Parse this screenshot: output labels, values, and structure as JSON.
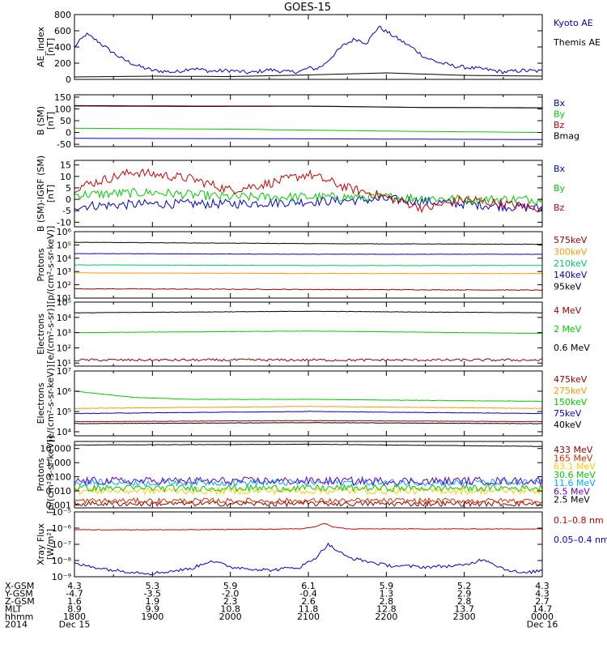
{
  "title": "GOES-15",
  "chart_data": [
    {
      "type": "line",
      "ylabel": [
        "AE_index",
        "[nT]"
      ],
      "scale": "linear",
      "ylim": [
        0,
        800
      ],
      "ticks": [
        0,
        200,
        400,
        600,
        800
      ],
      "tick_labels": [
        "0",
        "200",
        "400",
        "600",
        "800"
      ],
      "series": [
        {
          "name": "Kyoto AE",
          "color": "#0000cc",
          "noise": 0.03,
          "x": [
            0,
            0.3,
            0.6,
            0.9,
            1.2,
            1.6,
            2.0,
            2.6,
            3.0,
            3.5,
            4.0,
            4.5,
            5.0,
            5.5,
            5.8,
            6.0,
            6.2,
            6.4,
            6.6,
            6.9,
            7.2,
            7.5,
            7.8,
            8.1,
            8.4,
            8.7,
            9.0,
            9.4,
            9.8,
            10.2,
            10.6,
            11.0,
            11.5,
            12.0
          ],
          "y": [
            400,
            560,
            470,
            360,
            260,
            170,
            110,
            90,
            140,
            100,
            110,
            80,
            120,
            90,
            100,
            140,
            130,
            180,
            280,
            420,
            500,
            450,
            650,
            560,
            470,
            380,
            270,
            200,
            160,
            140,
            120,
            90,
            110,
            100
          ]
        },
        {
          "name": "Themis AE",
          "color": "#000000",
          "noise": 0.0,
          "x": [
            0,
            2,
            4,
            6,
            8,
            10,
            12
          ],
          "y": [
            30,
            40,
            35,
            55,
            80,
            50,
            40
          ]
        }
      ],
      "legend_ticks": [
        "Kyoto AE",
        "Themis AE"
      ]
    },
    {
      "type": "line",
      "ylabel": [
        "B (SM)",
        "[nT]"
      ],
      "scale": "linear",
      "ylim": [
        -60,
        160
      ],
      "ticks": [
        -50,
        0,
        50,
        100,
        150
      ],
      "tick_labels": [
        "-50",
        "0",
        "50",
        "100",
        "150"
      ],
      "series": [
        {
          "name": "Bx",
          "color": "#0000cc",
          "noise": 0.0,
          "x": [
            0,
            4,
            8,
            12
          ],
          "y": [
            -25,
            -26,
            -28,
            -30
          ]
        },
        {
          "name": "By",
          "color": "#00cc00",
          "noise": 0.0,
          "x": [
            0,
            4,
            8,
            12
          ],
          "y": [
            18,
            14,
            6,
            0
          ]
        },
        {
          "name": "Bz",
          "color": "#cc0000",
          "noise": 0.0,
          "x": [
            0,
            3,
            6,
            9,
            12
          ],
          "y": [
            112,
            110,
            111,
            106,
            104
          ]
        },
        {
          "name": "Bmag",
          "color": "#000000",
          "noise": 0.0,
          "x": [
            0,
            3,
            6,
            9,
            12
          ],
          "y": [
            114,
            112,
            112,
            106,
            105
          ]
        }
      ]
    },
    {
      "type": "line",
      "ylabel": [
        "B (SM)-IGRF (SM)",
        "[nT]"
      ],
      "scale": "linear",
      "ylim": [
        -12,
        17
      ],
      "ticks": [
        -10,
        -5,
        0,
        5,
        10,
        15
      ],
      "tick_labels": [
        "-10",
        "-5",
        "0",
        "5",
        "10",
        "15"
      ],
      "series": [
        {
          "name": "Bx",
          "color": "#0000cc",
          "noise": 0.07,
          "x": [
            0,
            2,
            4,
            6,
            8,
            10,
            12
          ],
          "y": [
            -3,
            -2,
            -2,
            -1,
            0,
            -2,
            -4
          ]
        },
        {
          "name": "By",
          "color": "#00cc00",
          "noise": 0.07,
          "x": [
            0,
            2,
            4,
            6,
            8,
            10,
            12
          ],
          "y": [
            2,
            3,
            1,
            1,
            1,
            0,
            0
          ]
        },
        {
          "name": "Bz",
          "color": "#cc0000",
          "noise": 0.07,
          "x": [
            0,
            1.5,
            3,
            4,
            5,
            6,
            7,
            8,
            9,
            10,
            11,
            12
          ],
          "y": [
            5,
            12,
            9,
            4,
            7,
            11,
            5,
            1,
            -4,
            0,
            -2,
            -4
          ]
        }
      ]
    },
    {
      "type": "line",
      "ylabel": [
        "Protons",
        "[p/(cm²-s-sr-keV)]"
      ],
      "scale": "log",
      "ylim": [
        1,
        6
      ],
      "ticks": [
        1,
        2,
        3,
        4,
        5,
        6
      ],
      "tick_labels": [
        "10¹",
        "10²",
        "10³",
        "10⁴",
        "10⁵",
        "10⁶"
      ],
      "series": [
        {
          "name": "575keV",
          "color": "#990000",
          "noise": 0.01,
          "x": [
            0,
            6,
            12
          ],
          "y": [
            1.7,
            1.65,
            1.6
          ]
        },
        {
          "name": "300keV",
          "color": "#ff9900",
          "noise": 0.005,
          "x": [
            0,
            6,
            12
          ],
          "y": [
            2.9,
            2.85,
            2.85
          ]
        },
        {
          "name": "210keV",
          "color": "#00cc66",
          "noise": 0.005,
          "x": [
            0,
            6,
            12
          ],
          "y": [
            3.5,
            3.45,
            3.45
          ]
        },
        {
          "name": "140keV",
          "color": "#0000cc",
          "noise": 0.005,
          "x": [
            0,
            6,
            12
          ],
          "y": [
            4.35,
            4.3,
            4.3
          ]
        },
        {
          "name": "95keV",
          "color": "#000000",
          "noise": 0.005,
          "x": [
            0,
            6,
            12
          ],
          "y": [
            5.2,
            5.1,
            5.05
          ]
        }
      ]
    },
    {
      "type": "line",
      "ylabel": [
        "Electrons",
        "[e/(cm²-s-sr)]"
      ],
      "scale": "log",
      "ylim": [
        0.8,
        5
      ],
      "ticks": [
        1,
        2,
        3,
        4,
        5
      ],
      "tick_labels": [
        "10¹",
        "10²",
        "10³",
        "10⁴",
        "10⁵"
      ],
      "series": [
        {
          "name": "4 MeV",
          "color": "#990000",
          "noise": 0.04,
          "x": [
            0,
            6,
            12
          ],
          "y": [
            1.2,
            1.2,
            1.2
          ]
        },
        {
          "name": "2 MeV",
          "color": "#00cc00",
          "noise": 0.005,
          "x": [
            0,
            6,
            12
          ],
          "y": [
            3.0,
            3.1,
            2.95
          ]
        },
        {
          "name": "0.6 MeV",
          "color": "#000000",
          "noise": 0.005,
          "x": [
            0,
            6,
            12
          ],
          "y": [
            4.3,
            4.4,
            4.3
          ]
        }
      ]
    },
    {
      "type": "line",
      "ylabel": [
        "Electrons",
        "[e/(cm²-s-sr-keV)]"
      ],
      "scale": "log",
      "ylim": [
        3.8,
        7
      ],
      "ticks": [
        4,
        5,
        6,
        7
      ],
      "tick_labels": [
        "10⁴",
        "10⁵",
        "10⁶",
        "10⁷"
      ],
      "series": [
        {
          "name": "475keV",
          "color": "#990000",
          "noise": 0.006,
          "x": [
            0,
            6,
            12
          ],
          "y": [
            4.5,
            4.55,
            4.5
          ]
        },
        {
          "name": "275keV",
          "color": "#ff9900",
          "noise": 0.006,
          "x": [
            0,
            6,
            12
          ],
          "y": [
            5.15,
            5.25,
            5.15
          ]
        },
        {
          "name": "150keV",
          "color": "#00cc00",
          "noise": 0.006,
          "x": [
            0,
            1.5,
            3,
            6,
            12
          ],
          "y": [
            6.0,
            5.7,
            5.6,
            5.6,
            5.5
          ]
        },
        {
          "name": "75keV",
          "color": "#0000cc",
          "noise": 0.006,
          "x": [
            0,
            6,
            12
          ],
          "y": [
            4.9,
            5.0,
            4.9
          ]
        },
        {
          "name": "40keV",
          "color": "#000000",
          "noise": 0.006,
          "x": [
            0,
            6,
            12
          ],
          "y": [
            4.4,
            4.45,
            4.4
          ]
        }
      ]
    },
    {
      "type": "line",
      "ylabel": [
        "Protons",
        "[p/(cm²-s-sr-keV)]"
      ],
      "scale": "log",
      "ylim": [
        -3.2,
        1.5
      ],
      "ticks": [
        -3,
        -2,
        -1,
        0,
        1
      ],
      "tick_labels": [
        "0.001",
        "0.010",
        "0.100",
        "1.000",
        "10.000"
      ],
      "series": [
        {
          "name": "433 MeV",
          "color": "#990000",
          "noise": 0.08,
          "x": [
            0,
            12
          ],
          "y": [
            -2.9,
            -2.9
          ]
        },
        {
          "name": "165 MeV",
          "color": "#cc3300",
          "noise": 0.08,
          "x": [
            0,
            12
          ],
          "y": [
            -2.7,
            -2.7
          ]
        },
        {
          "name": "63.1 MeV",
          "color": "#ffcc00",
          "noise": 0.1,
          "x": [
            0,
            12
          ],
          "y": [
            -2.0,
            -2.0
          ]
        },
        {
          "name": "30.6 MeV",
          "color": "#00cc00",
          "noise": 0.1,
          "x": [
            0,
            12
          ],
          "y": [
            -1.8,
            -1.8
          ]
        },
        {
          "name": "11.6 MeV",
          "color": "#00aaff",
          "noise": 0.1,
          "x": [
            0,
            12
          ],
          "y": [
            -1.4,
            -1.4
          ]
        },
        {
          "name": "6.5 MeV",
          "color": "#6600cc",
          "noise": 0.12,
          "x": [
            0,
            12
          ],
          "y": [
            -1.3,
            -1.3
          ]
        },
        {
          "name": "2.5 MeV",
          "color": "#000000",
          "noise": 0.005,
          "x": [
            0,
            6,
            12
          ],
          "y": [
            1.25,
            1.3,
            1.15
          ]
        }
      ]
    },
    {
      "type": "line",
      "ylabel": [
        "Xray Flux",
        "[W/m²]"
      ],
      "scale": "log",
      "ylim": [
        -9,
        -5
      ],
      "ticks": [
        -9,
        -8,
        -7,
        -6,
        -5
      ],
      "tick_labels": [
        "10⁻⁹",
        "10⁻⁸",
        "10⁻⁷",
        "10⁻⁶",
        "10⁻⁵"
      ],
      "series": [
        {
          "name": "0.1–0.8 nm",
          "color": "#cc0000",
          "noise": 0.01,
          "x": [
            0,
            3,
            5.8,
            6.2,
            6.4,
            6.6,
            7,
            9,
            12
          ],
          "y": [
            -6.1,
            -6.1,
            -6.05,
            -5.9,
            -5.7,
            -5.9,
            -6.05,
            -6.05,
            -6.05
          ]
        },
        {
          "name": "0.05–0.4 nm",
          "color": "#0000cc",
          "noise": 0.05,
          "x": [
            0,
            0.5,
            1,
            2,
            3,
            3.5,
            4,
            5,
            5.8,
            6.2,
            6.5,
            7,
            8,
            9,
            10,
            10.5,
            11,
            11.5,
            12
          ],
          "y": [
            -8.2,
            -8.4,
            -8.6,
            -8.8,
            -8.5,
            -8.0,
            -8.4,
            -8.6,
            -8.4,
            -7.8,
            -7.0,
            -7.8,
            -8.3,
            -8.4,
            -8.3,
            -7.9,
            -8.5,
            -8.8,
            -8.6
          ]
        }
      ]
    }
  ],
  "xticks": {
    "rows": [
      "X-GSM",
      "Y-GSM",
      "Z-GSM",
      "MLT",
      "hhmm",
      "2014"
    ],
    "columns": [
      [
        "4.3",
        "-4.7",
        "1.6",
        "8.9",
        "1800",
        "Dec 15"
      ],
      [
        "5.3",
        "-3.5",
        "1.9",
        "9.9",
        "1900",
        ""
      ],
      [
        "5.9",
        "-2.0",
        "2.3",
        "10.8",
        "2000",
        ""
      ],
      [
        "6.1",
        "-0.4",
        "2.6",
        "11.8",
        "2100",
        ""
      ],
      [
        "5.9",
        "1.3",
        "2.8",
        "12.8",
        "2200",
        ""
      ],
      [
        "5.2",
        "2.9",
        "2.8",
        "13.7",
        "2300",
        ""
      ],
      [
        "4.3",
        "4.3",
        "2.7",
        "14.7",
        "0000",
        "Dec 16"
      ]
    ]
  }
}
